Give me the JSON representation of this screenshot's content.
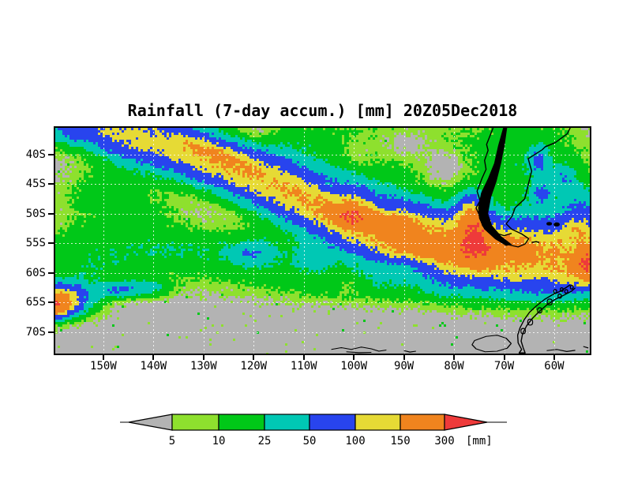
{
  "title": "Rainfall (7-day accum.) [mm] 20Z05Dec2018",
  "axes": {
    "lat_ticks": [
      {
        "label": "40S",
        "deg": -40
      },
      {
        "label": "45S",
        "deg": -45
      },
      {
        "label": "50S",
        "deg": -50
      },
      {
        "label": "55S",
        "deg": -55
      },
      {
        "label": "60S",
        "deg": -60
      },
      {
        "label": "65S",
        "deg": -65
      },
      {
        "label": "70S",
        "deg": -70
      }
    ],
    "lon_ticks": [
      {
        "label": "150W",
        "deg": -150
      },
      {
        "label": "140W",
        "deg": -140
      },
      {
        "label": "130W",
        "deg": -130
      },
      {
        "label": "120W",
        "deg": -120
      },
      {
        "label": "110W",
        "deg": -110
      },
      {
        "label": "100W",
        "deg": -100
      },
      {
        "label": "90W",
        "deg": -90
      },
      {
        "label": "80W",
        "deg": -80
      },
      {
        "label": "70W",
        "deg": -70
      },
      {
        "label": "60W",
        "deg": -60
      }
    ]
  },
  "colorbar": {
    "labels": [
      "5",
      "10",
      "25",
      "50",
      "100",
      "150",
      "300"
    ],
    "unit_label": "[mm]"
  },
  "chart_data": {
    "type": "heatmap",
    "title": "Rainfall (7-day accum.) [mm] 20Z05Dec2018",
    "variable": "7-day accumulated rainfall",
    "unit": "mm",
    "valid_time": "20Z05Dec2018",
    "lon_range": [
      -159.6,
      -52.9
    ],
    "lat_range": [
      -73.6,
      -35.5
    ],
    "levels_mm": [
      5,
      10,
      25,
      50,
      100,
      150,
      300
    ],
    "palette": [
      "#b3b3b3",
      "#8ee02e",
      "#00c818",
      "#00c8b4",
      "#2844ee",
      "#e6da35",
      "#f0841e",
      "#ee3a3a"
    ],
    "background_mm": 2,
    "gridlines": {
      "lon_step_deg": 10,
      "lat_step_deg": 5,
      "color": "rgba(255,255,255,0.8)",
      "dash": [
        2,
        3
      ]
    },
    "rain_blobs": [
      [
        -149,
        -36,
        60,
        6,
        2.4,
        -14
      ],
      [
        -140,
        -37.8,
        70,
        9,
        2.8,
        -16
      ],
      [
        -128,
        -41,
        70,
        9,
        2.8,
        -17
      ],
      [
        -117,
        -44.5,
        65,
        9,
        2.8,
        -18
      ],
      [
        -107,
        -48,
        75,
        9,
        3.2,
        -15
      ],
      [
        -97,
        -51.5,
        85,
        9,
        3.5,
        -12
      ],
      [
        -87,
        -54.3,
        85,
        9,
        3.5,
        -8
      ],
      [
        -77,
        -55.8,
        90,
        8,
        3.5,
        -4
      ],
      [
        -66,
        -56.8,
        85,
        8,
        3.5,
        0
      ],
      [
        -56,
        -57.2,
        80,
        8,
        3.5,
        0
      ],
      [
        -126,
        -40.2,
        55,
        4,
        1.0,
        -20
      ],
      [
        -131.5,
        -38.6,
        40,
        3,
        0.8,
        -20
      ],
      [
        -100.5,
        -50.3,
        150,
        2.6,
        1.4,
        -5
      ],
      [
        -91.5,
        -52.3,
        85,
        3,
        1.4,
        -10
      ],
      [
        -88,
        -55.8,
        75,
        4,
        1.3,
        -4
      ],
      [
        -81,
        -56.6,
        65,
        4.5,
        1.3,
        0
      ],
      [
        -70,
        -55.6,
        70,
        3,
        1.2,
        0
      ],
      [
        -76,
        -52.8,
        230,
        2.0,
        3.2,
        8
      ],
      [
        -53,
        -58.2,
        200,
        1.8,
        1.8,
        0
      ],
      [
        -159.8,
        -65.3,
        230,
        2.2,
        1.3,
        0
      ],
      [
        -157.5,
        -64.6,
        60,
        4,
        1.8,
        0
      ],
      [
        -158,
        -63.6,
        45,
        3,
        1.5,
        0
      ],
      [
        -147,
        -62.8,
        45,
        3,
        0.9,
        0
      ],
      [
        -141,
        -62.5,
        28,
        3,
        1,
        0
      ],
      [
        -157,
        -36,
        35,
        3.5,
        1.8,
        0
      ],
      [
        -62.5,
        -46.5,
        40,
        1.4,
        1.4,
        0
      ],
      [
        -63,
        -41,
        45,
        1.2,
        1.6,
        0
      ],
      [
        -58,
        -44,
        32,
        1.5,
        1.5,
        0
      ],
      [
        -54,
        -50,
        40,
        3,
        3,
        0
      ],
      [
        -55,
        -53,
        55,
        2.5,
        1.5,
        0
      ],
      [
        -54,
        -60,
        45,
        3,
        2,
        0
      ],
      [
        -120,
        -56.5,
        28,
        3,
        1.5,
        0
      ],
      [
        -108,
        -57.5,
        26,
        3,
        1.5,
        0
      ],
      [
        -150,
        -55.5,
        16,
        10,
        3,
        0
      ],
      [
        -133,
        -56.5,
        16,
        9,
        3,
        0
      ],
      [
        -118,
        -57,
        14,
        7,
        2.5,
        0
      ],
      [
        -153,
        -60,
        13,
        5,
        2,
        0
      ],
      [
        -97,
        -61.5,
        17,
        16,
        2.2,
        0
      ],
      [
        -72,
        -61.8,
        17,
        12,
        2.2,
        0
      ],
      [
        -57,
        -61,
        15,
        6,
        2.5,
        0
      ],
      [
        -60,
        -49,
        15,
        7,
        7,
        0
      ],
      [
        -67,
        -39.5,
        14,
        7,
        5,
        0
      ],
      [
        -95,
        -39.5,
        14,
        12,
        4.5,
        0
      ],
      [
        -112,
        -39.5,
        12,
        8,
        3.5,
        0
      ],
      [
        -145,
        -43,
        11,
        7,
        3,
        0
      ],
      [
        -152,
        -47.5,
        10,
        5,
        2.5,
        0
      ],
      [
        -142,
        -49.5,
        10,
        5,
        2,
        0
      ],
      [
        -100,
        -40,
        -12,
        4,
        2.5,
        0
      ],
      [
        -90,
        -38.5,
        -12,
        4,
        2,
        0
      ],
      [
        -109,
        -43,
        -10,
        3,
        2,
        0
      ],
      [
        -82,
        -42,
        -10,
        3,
        2,
        0
      ],
      [
        -120,
        -37,
        -9,
        3,
        1.5,
        0
      ],
      [
        -88,
        -61.5,
        -12,
        3,
        1.2,
        0
      ],
      [
        -75,
        -62,
        -12,
        3,
        1.2,
        0
      ],
      [
        -101,
        -62,
        -10,
        2.5,
        1,
        0
      ],
      [
        -62,
        -61,
        -10,
        2.5,
        1,
        0
      ],
      [
        -88,
        -57.8,
        -50,
        3.5,
        1.5,
        0
      ],
      [
        -104,
        -46,
        -40,
        2.5,
        1.2,
        -15
      ],
      [
        -95,
        -48.5,
        -35,
        2,
        1,
        -10
      ]
    ],
    "coastlines": {
      "west_coast": [
        [
          -72.2,
          -35.5
        ],
        [
          -72.8,
          -36.8
        ],
        [
          -73.5,
          -38.3
        ],
        [
          -73.2,
          -39.3
        ],
        [
          -73.9,
          -41
        ],
        [
          -73.6,
          -42.5
        ],
        [
          -74.4,
          -44
        ],
        [
          -75.4,
          -46.2
        ],
        [
          -74.8,
          -47.8
        ],
        [
          -75.6,
          -49
        ],
        [
          -74.8,
          -50.5
        ],
        [
          -74.3,
          -52
        ],
        [
          -73.2,
          -53
        ],
        [
          -71.8,
          -53.8
        ],
        [
          -70.3,
          -54.5
        ],
        [
          -68.8,
          -55.3
        ],
        [
          -67.2,
          -55.6
        ],
        [
          -65.8,
          -55.1
        ]
      ],
      "east_coast": [
        [
          -65.8,
          -55.1
        ],
        [
          -65.1,
          -54.2
        ],
        [
          -66.5,
          -53.4
        ],
        [
          -68.5,
          -52.6
        ],
        [
          -69.6,
          -51.7
        ],
        [
          -68.4,
          -50.4
        ],
        [
          -67.8,
          -49
        ],
        [
          -65.9,
          -47.5
        ],
        [
          -65.4,
          -45.8
        ],
        [
          -64.5,
          -42.8
        ],
        [
          -65.2,
          -40.7
        ],
        [
          -62.4,
          -39.2
        ],
        [
          -61.8,
          -38.7
        ],
        [
          -59.8,
          -38
        ],
        [
          -57.4,
          -36.5
        ],
        [
          -56.8,
          -35.5
        ]
      ],
      "magellan_strait": [
        [
          -73.5,
          -52.7
        ],
        [
          -71.5,
          -53.3
        ],
        [
          -70,
          -53.7
        ],
        [
          -68.5,
          -53.3
        ]
      ],
      "isla_estados": [
        [
          -64.5,
          -54.85
        ],
        [
          -63.6,
          -54.7
        ],
        [
          -63.0,
          -54.85
        ]
      ],
      "peninsula_outline": [
        [
          -56.8,
          -62.0
        ],
        [
          -58.6,
          -63.0
        ],
        [
          -60.4,
          -63.7
        ],
        [
          -62.0,
          -64.5
        ],
        [
          -63.5,
          -65.5
        ],
        [
          -64.9,
          -66.6
        ],
        [
          -66.0,
          -67.9
        ],
        [
          -66.8,
          -69.2
        ],
        [
          -67.3,
          -70.5
        ],
        [
          -67.2,
          -71.8
        ],
        [
          -66.5,
          -72.9
        ],
        [
          -67.0,
          -73.5
        ],
        [
          -65.8,
          -73.5
        ],
        [
          -66.2,
          -72.6
        ],
        [
          -66.6,
          -71.5
        ],
        [
          -66.3,
          -70.2
        ],
        [
          -65.5,
          -68.9
        ],
        [
          -64.4,
          -67.7
        ],
        [
          -63.0,
          -66.5
        ],
        [
          -61.5,
          -65.4
        ],
        [
          -59.9,
          -64.5
        ],
        [
          -58.2,
          -63.8
        ],
        [
          -56.6,
          -63.1
        ],
        [
          -55.8,
          -62.5
        ]
      ],
      "alexander_coast": [
        [
          -75.9,
          -71.4
        ],
        [
          -73.6,
          -70.7
        ],
        [
          -71.4,
          -70.5
        ],
        [
          -69.6,
          -71.0
        ],
        [
          -68.6,
          -71.9
        ],
        [
          -69.4,
          -72.7
        ],
        [
          -71.4,
          -73.2
        ],
        [
          -73.8,
          -73.3
        ],
        [
          -75.6,
          -72.8
        ],
        [
          -76.4,
          -72.1
        ]
      ],
      "antarctic_coast_segments": [
        [
          [
            -104.5,
            -72.9
          ],
          [
            -102.5,
            -72.6
          ],
          [
            -100.5,
            -72.9
          ],
          [
            -98.5,
            -72.5
          ],
          [
            -96.5,
            -72.8
          ],
          [
            -95,
            -73.2
          ],
          [
            -93.5,
            -73.0
          ]
        ],
        [
          [
            -101.5,
            -73.3
          ],
          [
            -99,
            -73.45
          ],
          [
            -96.5,
            -73.4
          ]
        ],
        [
          [
            -90,
            -73.1
          ],
          [
            -88.8,
            -73.35
          ],
          [
            -87.6,
            -73.2
          ]
        ],
        [
          [
            -61.5,
            -73.1
          ],
          [
            -59.5,
            -72.9
          ],
          [
            -57.5,
            -73.25
          ],
          [
            -55.8,
            -73.05
          ]
        ],
        [
          [
            -54.2,
            -72.4
          ],
          [
            -53.2,
            -72.65
          ]
        ]
      ],
      "islands_outline": [
        [
          -60.9,
          -64.9,
          0.5
        ],
        [
          -62.9,
          -66.3,
          0.45
        ],
        [
          -64.8,
          -68.3,
          0.5
        ],
        [
          -58.9,
          -63.9,
          0.35
        ],
        [
          -57.6,
          -63.1,
          0.3
        ],
        [
          -66.2,
          -69.8,
          0.45
        ],
        [
          -59.8,
          -63.1,
          0.3
        ],
        [
          -58.5,
          -62.8,
          0.3
        ],
        [
          -56.5,
          -62.4,
          0.3
        ]
      ],
      "falklands_filled": [
        [
          -61.0,
          -51.7,
          0.55,
          0.3
        ],
        [
          -59.5,
          -51.8,
          0.6,
          0.35
        ]
      ],
      "andes_fill": [
        [
          -70.2,
          -35.5
        ],
        [
          -71.2,
          -38.5
        ],
        [
          -72.0,
          -41.5
        ],
        [
          -73.2,
          -44
        ],
        [
          -74.6,
          -46.5
        ],
        [
          -75.2,
          -49
        ],
        [
          -75.0,
          -50.8
        ],
        [
          -74.0,
          -52.6
        ],
        [
          -71.8,
          -54.3
        ],
        [
          -69.6,
          -55.4
        ],
        [
          -68.4,
          -55.2
        ],
        [
          -70.6,
          -53.8
        ],
        [
          -72.4,
          -52
        ],
        [
          -73.2,
          -50
        ],
        [
          -72.6,
          -47.2
        ],
        [
          -71.5,
          -44.5
        ],
        [
          -70.6,
          -41.5
        ],
        [
          -69.9,
          -38.5
        ],
        [
          -69.4,
          -35.5
        ]
      ]
    }
  }
}
